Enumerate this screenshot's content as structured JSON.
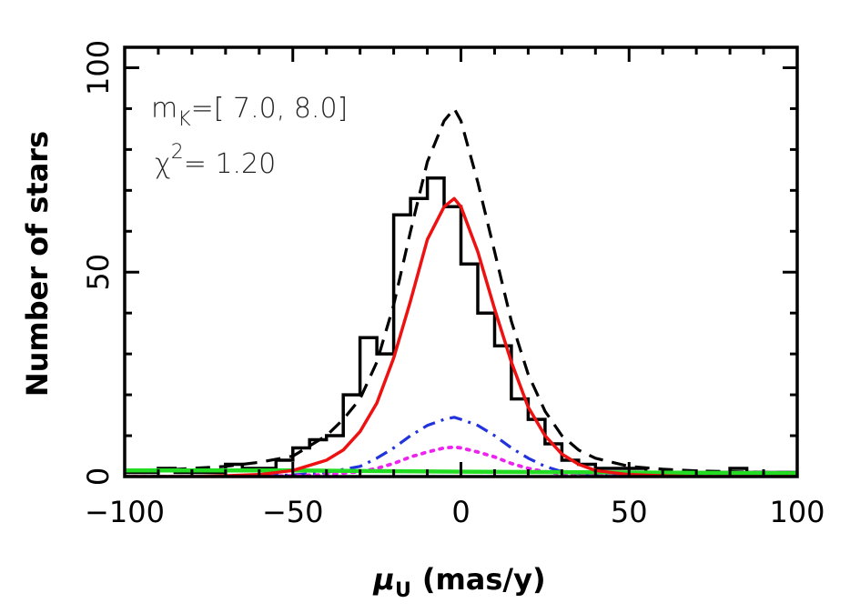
{
  "chart_data": {
    "type": "line",
    "xlabel_symbol": "μ",
    "xlabel_sub": "U",
    "xlabel_unit": "(mas/y)",
    "ylabel": "Number of stars",
    "xlim": [
      -100,
      100
    ],
    "ylim": [
      0,
      105
    ],
    "x_ticks": [
      -100,
      -50,
      0,
      50,
      100
    ],
    "x_tick_labels": [
      "−100",
      "−50",
      "0",
      "50",
      "100"
    ],
    "y_ticks": [
      0,
      50,
      100
    ],
    "y_tick_labels": [
      "0",
      "50",
      "100"
    ],
    "annotations": {
      "mk_label": "m",
      "mk_sub": "K",
      "mk_range": "=[ 7.0, 8.0]",
      "chi_label": "χ",
      "chi_sup": "2",
      "chi_value": "= 1.20"
    },
    "histogram": {
      "name": "observed",
      "color": "#000000",
      "bin_width": 5,
      "edges_start": -100,
      "counts": [
        1,
        1,
        2,
        1,
        1,
        1,
        3,
        2,
        2,
        4,
        7,
        9,
        10,
        20,
        34,
        30,
        64,
        68,
        73,
        66,
        52,
        40,
        32,
        19,
        14,
        8,
        4,
        3,
        2,
        2,
        2,
        1,
        1,
        1,
        1,
        1,
        2,
        1,
        1,
        1
      ]
    },
    "series": [
      {
        "style": "dashed",
        "color": "#000000",
        "x": [
          -100,
          -90,
          -80,
          -70,
          -60,
          -50,
          -40,
          -35,
          -30,
          -25,
          -20,
          -15,
          -10,
          -5,
          -2,
          0,
          5,
          10,
          15,
          20,
          25,
          30,
          35,
          40,
          50,
          60,
          70,
          80,
          90,
          100
        ],
        "y": [
          1,
          1.5,
          2,
          2.5,
          3.5,
          5,
          10,
          14,
          19,
          28,
          42,
          60,
          77,
          87,
          90,
          87,
          72,
          55,
          38,
          25,
          16,
          10,
          6.5,
          4.5,
          2.5,
          1.8,
          1.4,
          1.2,
          1,
          1
        ]
      },
      {
        "style": "solid",
        "color": "#ee1111",
        "x": [
          -100,
          -90,
          -80,
          -70,
          -60,
          -50,
          -40,
          -35,
          -30,
          -25,
          -20,
          -15,
          -10,
          -5,
          -2,
          0,
          5,
          10,
          15,
          20,
          25,
          30,
          35,
          40,
          50,
          60,
          70,
          80,
          90,
          100
        ],
        "y": [
          0,
          0,
          0,
          0.2,
          0.5,
          1.5,
          4,
          6.5,
          11,
          18,
          29,
          43,
          58,
          66,
          68,
          66,
          55,
          41,
          28,
          17,
          10,
          5.5,
          3,
          1.5,
          0.5,
          0.2,
          0,
          0,
          0,
          0
        ]
      },
      {
        "style": "dashdot",
        "color": "#2233dd",
        "x": [
          -100,
          -80,
          -60,
          -50,
          -40,
          -30,
          -25,
          -20,
          -15,
          -10,
          -5,
          -2,
          0,
          5,
          10,
          15,
          20,
          25,
          30,
          40,
          50,
          60,
          80,
          100
        ],
        "y": [
          0,
          0,
          0.2,
          0.4,
          1,
          2.5,
          4.5,
          7,
          10,
          12.5,
          14,
          14.5,
          14,
          12.5,
          10,
          7,
          4.5,
          2.5,
          1.2,
          0.4,
          0.2,
          0.1,
          0,
          0
        ]
      },
      {
        "style": "dotted",
        "color": "#ee22ee",
        "x": [
          -100,
          -80,
          -60,
          -50,
          -40,
          -30,
          -25,
          -20,
          -15,
          -10,
          -5,
          -2,
          0,
          5,
          10,
          15,
          20,
          25,
          30,
          40,
          50,
          60,
          80,
          100
        ],
        "y": [
          0,
          0,
          0.1,
          0.2,
          0.5,
          1.2,
          2,
          3.2,
          4.8,
          6,
          7,
          7.2,
          7,
          6,
          4.8,
          3.2,
          2,
          1.2,
          0.6,
          0.2,
          0.1,
          0,
          0,
          0
        ]
      },
      {
        "style": "solid-thick",
        "color": "#22dd22",
        "x": [
          -100,
          -50,
          0,
          50,
          100
        ],
        "y": [
          1.5,
          1.5,
          1.2,
          1,
          0.8
        ]
      }
    ]
  }
}
